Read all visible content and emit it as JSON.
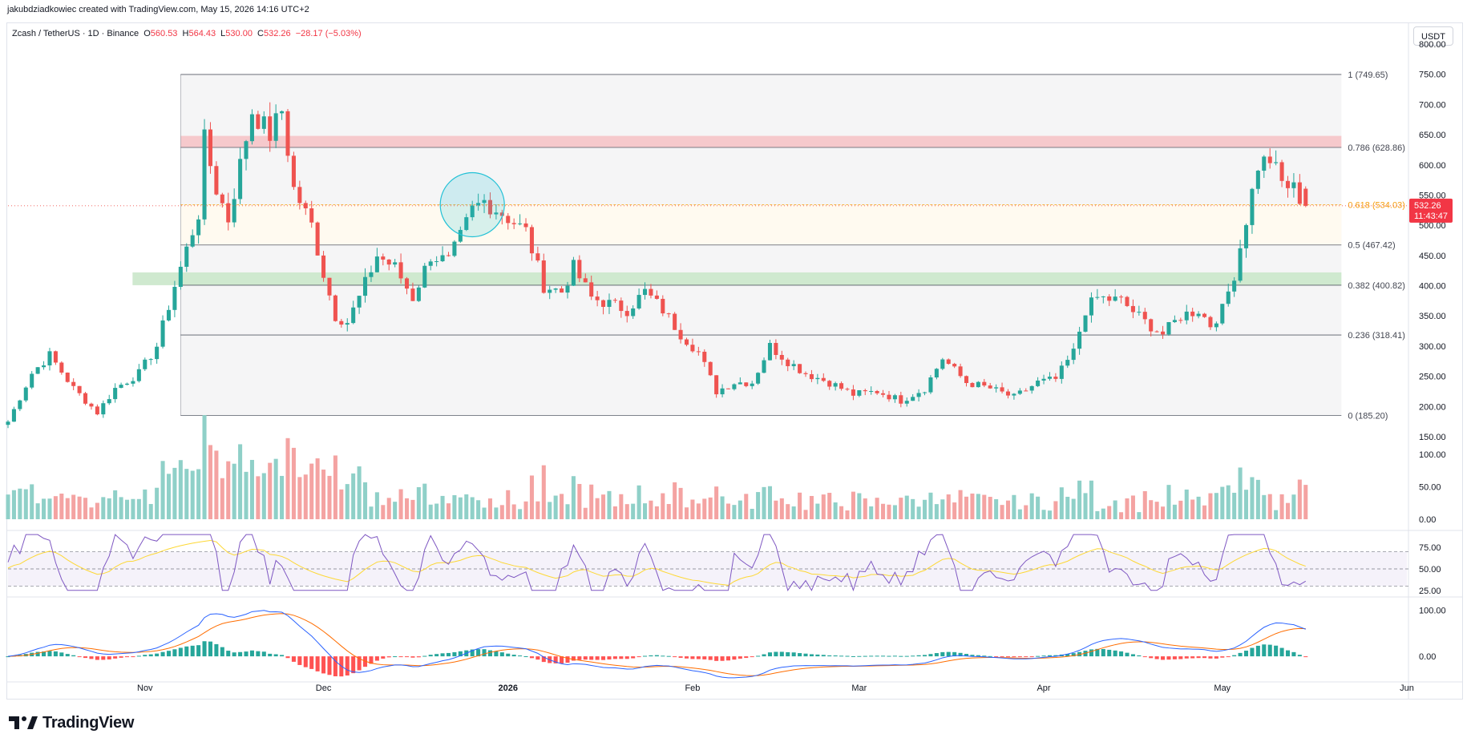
{
  "header": {
    "attribution": "jakubdziadkowiec created with TradingView.com, May 15, 2026 14:16 UTC+2"
  },
  "legend": {
    "symbol": "Zcash / TetherUS · 1D · Binance",
    "open_label": "O",
    "open": "560.53",
    "high_label": "H",
    "high": "564.43",
    "low_label": "L",
    "low": "530.00",
    "close_label": "C",
    "close": "532.26",
    "change": "−28.17 (−5.03%)"
  },
  "currency": "USDT",
  "brand": {
    "name": "TradingView",
    "icon": "tradingview-logo-icon"
  },
  "colors": {
    "up": "#26a69a",
    "down": "#ef5350",
    "vol_up": "#8fd0c8",
    "vol_down": "#f4a3a2",
    "fib_red_zone": "#f6c9cc",
    "fib_green_zone": "#cfe9cf",
    "fib_golden": "#f59d0e",
    "rsi": "#7e57c2",
    "rsi_ma": "#fdd835",
    "macd": "#2962ff",
    "signal": "#ff6d00",
    "circle": "#22c1d6"
  },
  "chart_data": [
    {
      "type": "candlestick",
      "title": "Zcash / TetherUS · 1D · Binance",
      "y_unit": "USDT",
      "ylim": [
        150,
        800
      ],
      "y_ticks": [
        "800.00",
        "750.00",
        "700.00",
        "650.00",
        "600.00",
        "550.00",
        "500.00",
        "450.00",
        "400.00",
        "350.00",
        "300.00",
        "250.00",
        "200.00",
        "150.00"
      ],
      "x_range": [
        "2025-10-09",
        "2026-06-01"
      ],
      "x_tick_labels": [
        {
          "date": "2025-11-01",
          "label": "Nov"
        },
        {
          "date": "2025-12-01",
          "label": "Dec"
        },
        {
          "date": "2026-01-01",
          "label": "2026"
        },
        {
          "date": "2026-02-01",
          "label": "Feb"
        },
        {
          "date": "2026-03-01",
          "label": "Mar"
        },
        {
          "date": "2026-04-01",
          "label": "Apr"
        },
        {
          "date": "2026-05-01",
          "label": "May"
        },
        {
          "date": "2026-06-01",
          "label": "Jun"
        }
      ],
      "last_price": {
        "value": 532.26,
        "label": "532.26",
        "countdown": "11:43:47"
      },
      "fibonacci": {
        "start_date": "2025-11-07",
        "end_date": "2026-05-21",
        "levels": [
          {
            "label": "1 (749.65)",
            "value": 749.65
          },
          {
            "label": "0.786 (628.86)",
            "value": 628.86
          },
          {
            "label": "0.618 (534.03)",
            "value": 534.03
          },
          {
            "label": "0.5 (467.42)",
            "value": 467.42
          },
          {
            "label": "0.382 (400.82)",
            "value": 400.82
          },
          {
            "label": "0.236 (318.41)",
            "value": 318.41
          },
          {
            "label": "0 (185.20)",
            "value": 185.2
          }
        ],
        "zones": [
          {
            "from": 628.86,
            "to": 648,
            "color": "red"
          },
          {
            "from": 400.82,
            "to": 422,
            "color": "green"
          }
        ]
      },
      "highlight_circle": {
        "date": "2025-12-26",
        "value": 534
      },
      "keypoints": [
        [
          "2025-10-09",
          175
        ],
        [
          "2025-10-13",
          255
        ],
        [
          "2025-10-16",
          285
        ],
        [
          "2025-10-20",
          230
        ],
        [
          "2025-10-24",
          190
        ],
        [
          "2025-10-27",
          230
        ],
        [
          "2025-10-31",
          255
        ],
        [
          "2025-11-03",
          300
        ],
        [
          "2025-11-06",
          400
        ],
        [
          "2025-11-08",
          460
        ],
        [
          "2025-11-10",
          520
        ],
        [
          "2025-11-11",
          640
        ],
        [
          "2025-11-13",
          560
        ],
        [
          "2025-11-15",
          510
        ],
        [
          "2025-11-17",
          600
        ],
        [
          "2025-11-19",
          690
        ],
        [
          "2025-11-22",
          650
        ],
        [
          "2025-11-24",
          690
        ],
        [
          "2025-11-26",
          560
        ],
        [
          "2025-11-29",
          500
        ],
        [
          "2025-12-01",
          420
        ],
        [
          "2025-12-03",
          350
        ],
        [
          "2025-12-05",
          340
        ],
        [
          "2025-12-07",
          380
        ],
        [
          "2025-12-10",
          450
        ],
        [
          "2025-12-13",
          430
        ],
        [
          "2025-12-16",
          380
        ],
        [
          "2025-12-19",
          450
        ],
        [
          "2025-12-22",
          440
        ],
        [
          "2025-12-24",
          480
        ],
        [
          "2025-12-26",
          525
        ],
        [
          "2025-12-28",
          540
        ],
        [
          "2025-12-31",
          520
        ],
        [
          "2026-01-04",
          490
        ],
        [
          "2026-01-07",
          400
        ],
        [
          "2026-01-10",
          390
        ],
        [
          "2026-01-12",
          430
        ],
        [
          "2026-01-15",
          380
        ],
        [
          "2026-01-18",
          370
        ],
        [
          "2026-01-21",
          360
        ],
        [
          "2026-01-24",
          390
        ],
        [
          "2026-01-27",
          360
        ],
        [
          "2026-01-30",
          320
        ],
        [
          "2026-02-02",
          290
        ],
        [
          "2026-02-05",
          225
        ],
        [
          "2026-02-08",
          240
        ],
        [
          "2026-02-11",
          240
        ],
        [
          "2026-02-14",
          300
        ],
        [
          "2026-02-17",
          275
        ],
        [
          "2026-02-20",
          255
        ],
        [
          "2026-02-24",
          240
        ],
        [
          "2026-02-28",
          220
        ],
        [
          "2026-03-04",
          225
        ],
        [
          "2026-03-08",
          210
        ],
        [
          "2026-03-12",
          230
        ],
        [
          "2026-03-15",
          280
        ],
        [
          "2026-03-19",
          240
        ],
        [
          "2026-03-23",
          230
        ],
        [
          "2026-03-27",
          215
        ],
        [
          "2026-03-31",
          240
        ],
        [
          "2026-04-03",
          245
        ],
        [
          "2026-04-06",
          290
        ],
        [
          "2026-04-08",
          360
        ],
        [
          "2026-04-10",
          380
        ],
        [
          "2026-04-14",
          375
        ],
        [
          "2026-04-18",
          340
        ],
        [
          "2026-04-21",
          320
        ],
        [
          "2026-04-24",
          350
        ],
        [
          "2026-04-27",
          360
        ],
        [
          "2026-04-29",
          335
        ],
        [
          "2026-05-01",
          360
        ],
        [
          "2026-05-03",
          420
        ],
        [
          "2026-05-05",
          510
        ],
        [
          "2026-05-07",
          600
        ],
        [
          "2026-05-09",
          610
        ],
        [
          "2026-05-11",
          570
        ],
        [
          "2026-05-13",
          560
        ],
        [
          "2026-05-15",
          532
        ]
      ],
      "volume_axis": {
        "ticks": [
          "100.00",
          "50.00",
          "0.00"
        ],
        "ylim": [
          0,
          170
        ]
      },
      "rsi": {
        "ticks": [
          "75.00",
          "50.00",
          "25.00"
        ],
        "bands": [
          30,
          70
        ],
        "ylim": [
          22,
          92
        ]
      },
      "macd": {
        "ticks": [
          "100.00",
          "0.00"
        ],
        "ylim": [
          -45,
          120
        ]
      }
    }
  ]
}
